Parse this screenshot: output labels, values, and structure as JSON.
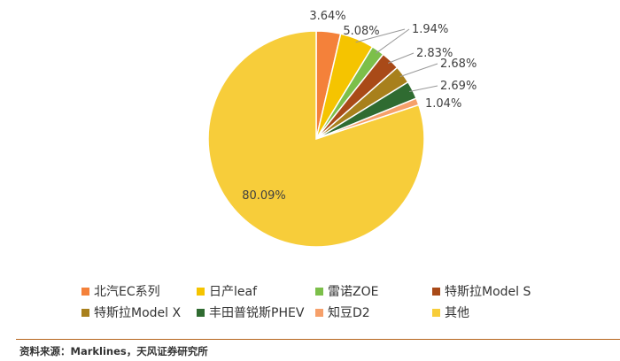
{
  "chart_data": {
    "type": "pie",
    "series": [
      {
        "name": "北汽EC系列",
        "value": 3.64,
        "label": "3.64%",
        "color": "#f4813a"
      },
      {
        "name": "日产leaf",
        "value": 5.08,
        "label": "5.08%",
        "color": "#f5c400"
      },
      {
        "name": "雷诺ZOE",
        "value": 1.94,
        "label": "1.94%",
        "color": "#7cbf4a"
      },
      {
        "name": "特斯拉Model S",
        "value": 2.83,
        "label": "2.83%",
        "color": "#a94a18"
      },
      {
        "name": "特斯拉Model X",
        "value": 2.68,
        "label": "2.68%",
        "color": "#a8801c"
      },
      {
        "name": "丰田普锐斯PHEV",
        "value": 2.69,
        "label": "2.69%",
        "color": "#2f6b31"
      },
      {
        "name": "知豆D2",
        "value": 1.04,
        "label": "1.04%",
        "color": "#f6a06a"
      },
      {
        "name": "其他",
        "value": 80.09,
        "label": "80.09%",
        "color": "#f7cd3a"
      }
    ],
    "legend_position": "bottom"
  },
  "source": "资料来源：Marklines，天风证券研究所"
}
